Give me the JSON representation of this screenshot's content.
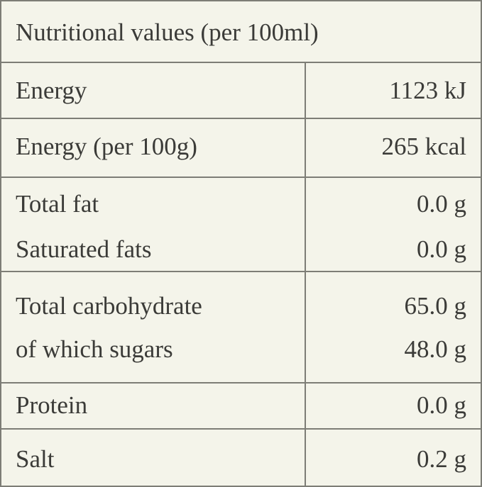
{
  "title": "Nutritional values (per 100ml)",
  "groups": [
    [
      [
        "Energy",
        "1123 kJ"
      ]
    ],
    [
      [
        "Energy (per 100g)",
        "265 kcal"
      ]
    ],
    [
      [
        "Total fat",
        "0.0 g"
      ],
      [
        "Saturated fats",
        "0.0 g"
      ]
    ],
    [
      [
        "Total carbohydrate",
        "65.0 g"
      ],
      [
        "of which sugars",
        "48.0 g"
      ]
    ],
    [
      [
        "Protein",
        "0.0 g"
      ]
    ],
    [
      [
        "Salt",
        "0.2 g"
      ]
    ]
  ]
}
